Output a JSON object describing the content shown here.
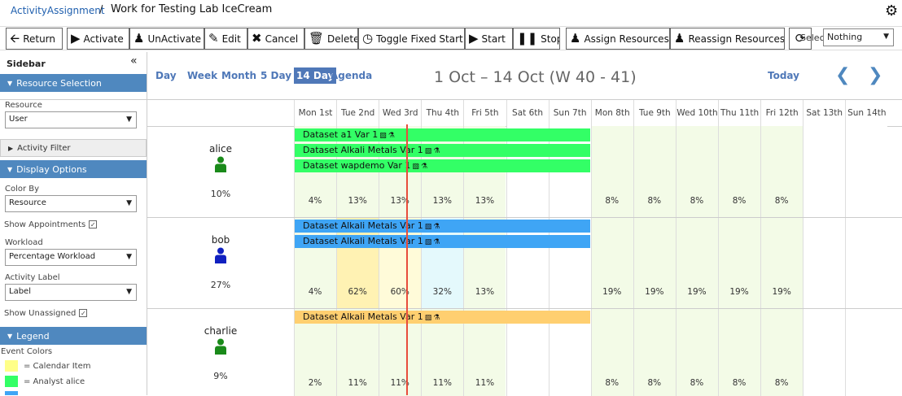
{
  "topbar": {
    "breadcrumb_link": "ActivityAssignment",
    "separator": "/",
    "title": "Work for Testing Lab IceCream",
    "settings_icon": "gear-icon"
  },
  "toolbar": {
    "buttons": [
      {
        "label": "Return",
        "icon": "arrow-left-icon"
      },
      {
        "label": "Activate",
        "icon": "play-icon"
      },
      {
        "label": "UnActivate",
        "icon": "user-minus-icon"
      },
      {
        "label": "Edit",
        "icon": "edit-icon"
      },
      {
        "label": "Cancel",
        "icon": "cancel-icon"
      },
      {
        "label": "Delete",
        "icon": "trash-icon"
      },
      {
        "label": "Toggle Fixed Start",
        "icon": "alarm-icon"
      },
      {
        "label": "Start",
        "icon": "play-icon"
      },
      {
        "label": "Stop",
        "icon": "pause-icon"
      },
      {
        "label": "Assign Resources",
        "icon": "user-assign-icon"
      },
      {
        "label": "Reassign Resources",
        "icon": "user-assign-icon"
      }
    ],
    "refresh_icon": "refresh-icon",
    "select_label": "Select",
    "select_value": "Nothing"
  },
  "sidebar": {
    "title": "Sidebar",
    "panels": {
      "resource_selection": "Resource Selection",
      "activity_filter": "Activity Filter",
      "display_options": "Display Options",
      "legend": "Legend"
    },
    "resource_label": "Resource",
    "resource_value": "User",
    "color_by_label": "Color By",
    "color_by_value": "Resource",
    "show_appointments_label": "Show Appointments",
    "workload_label": "Workload",
    "workload_value": "Percentage Workload",
    "activity_label_label": "Activity Label",
    "activity_label_value": "Label",
    "show_unassigned_label": "Show Unassigned",
    "legend_title": "Event Colors",
    "legend_items": [
      {
        "label": "= Calendar Item",
        "color": "#ffff88"
      },
      {
        "label": "= Analyst alice",
        "color": "#33ff66"
      }
    ]
  },
  "calendar": {
    "views": [
      "Day",
      "Week",
      "Month",
      "5 Day",
      "14 Day",
      "Agenda"
    ],
    "active_view": "14 Day",
    "range": "1 Oct – 14 Oct (W 40 - 41)",
    "today": "Today",
    "days": [
      "Mon 1st",
      "Tue 2nd",
      "Wed 3rd",
      "Thu 4th",
      "Fri 5th",
      "Sat 6th",
      "Sun 7th",
      "Mon 8th",
      "Tue 9th",
      "Wed 10th",
      "Thu 11th",
      "Fri 12th",
      "Sat 13th",
      "Sun 14th"
    ],
    "resources": [
      {
        "name": "alice",
        "percent": "10%",
        "icon_color": "#1a8a1a",
        "event_color": "#33ff66",
        "events": [
          "Dataset a1 Var 1",
          "Dataset Alkali Metals Var 1",
          "Dataset wapdemo Var 1"
        ],
        "workload": [
          "4%",
          "13%",
          "13%",
          "13%",
          "13%",
          "",
          "",
          "8%",
          "8%",
          "8%",
          "8%",
          "8%",
          "",
          ""
        ]
      },
      {
        "name": "bob",
        "percent": "27%",
        "icon_color": "#1020c0",
        "event_color": "#3fa5f5",
        "events": [
          "Dataset Alkali Metals Var 1",
          "Dataset Alkali Metals Var 1"
        ],
        "workload": [
          "4%",
          "62%",
          "60%",
          "32%",
          "13%",
          "",
          "",
          "19%",
          "19%",
          "19%",
          "19%",
          "19%",
          "",
          ""
        ]
      },
      {
        "name": "charlie",
        "percent": "9%",
        "icon_color": "#1a8a1a",
        "event_color": "#ffcf70",
        "events": [
          "Dataset Alkali Metals Var 1"
        ],
        "workload": [
          "2%",
          "11%",
          "11%",
          "11%",
          "11%",
          "",
          "",
          "8%",
          "8%",
          "8%",
          "8%",
          "8%",
          "",
          ""
        ]
      }
    ]
  }
}
